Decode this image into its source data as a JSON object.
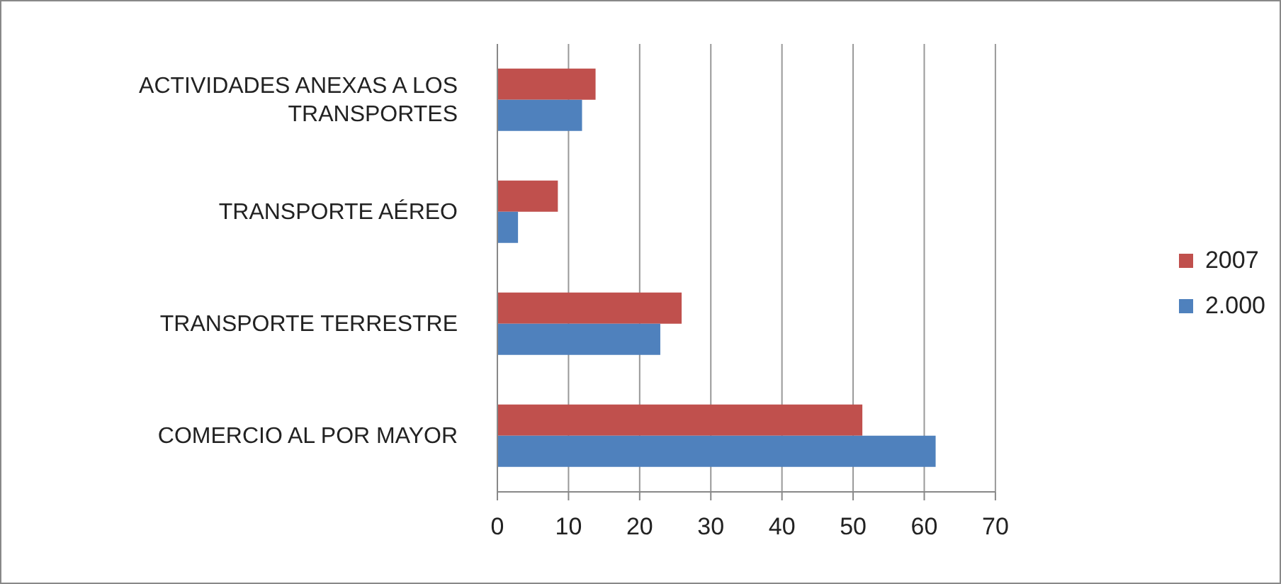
{
  "chart_data": {
    "type": "bar",
    "orientation": "horizontal",
    "categories": [
      "ACTIVIDADES ANEXAS A LOS TRANSPORTES",
      "TRANSPORTE AÉREO",
      "TRANSPORTE TERRESTRE",
      "COMERCIO AL POR MAYOR"
    ],
    "series": [
      {
        "name": "2007",
        "color": "#c0504d",
        "values": [
          13.8,
          8.5,
          25.9,
          51.3
        ]
      },
      {
        "name": "2.000",
        "color": "#4f81bd",
        "values": [
          11.9,
          2.9,
          22.9,
          61.6
        ]
      }
    ],
    "xlim": [
      0,
      70
    ],
    "xticks": [
      0,
      10,
      20,
      30,
      40,
      50,
      60,
      70
    ],
    "grid": "x",
    "legend": "right"
  }
}
